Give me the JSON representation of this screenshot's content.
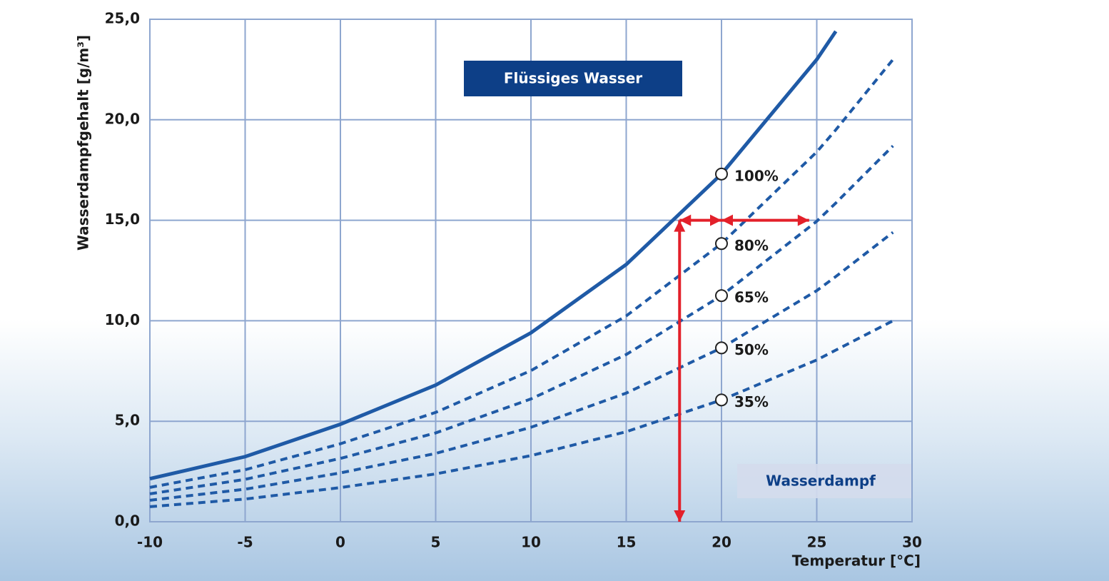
{
  "chart_data": {
    "type": "line",
    "x_label": "Temperatur [°C]",
    "y_label": "Wasserdampfgehalt [g/m³]",
    "x": [
      -10,
      -5,
      0,
      5,
      10,
      15,
      20,
      25,
      26,
      29
    ],
    "series": [
      {
        "name": "100%",
        "color": "#1f5aa6",
        "dashed": false,
        "values": [
          2.14,
          3.24,
          4.85,
          6.8,
          9.4,
          12.8,
          17.3,
          23.0,
          24.4,
          null
        ]
      },
      {
        "name": "80%",
        "color": "#1f5aa6",
        "dashed": true,
        "values": [
          1.71,
          2.59,
          3.88,
          5.44,
          7.52,
          10.24,
          13.84,
          18.4,
          19.5,
          23.0
        ]
      },
      {
        "name": "65%",
        "color": "#1f5aa6",
        "dashed": true,
        "values": [
          1.39,
          2.11,
          3.15,
          4.42,
          6.11,
          8.32,
          11.25,
          14.95,
          15.86,
          18.7
        ]
      },
      {
        "name": "50%",
        "color": "#1f5aa6",
        "dashed": true,
        "values": [
          1.07,
          1.62,
          2.43,
          3.4,
          4.7,
          6.4,
          8.65,
          11.5,
          12.2,
          14.4
        ]
      },
      {
        "name": "35%",
        "color": "#1f5aa6",
        "dashed": true,
        "values": [
          0.75,
          1.13,
          1.7,
          2.38,
          3.29,
          4.48,
          6.06,
          8.05,
          8.54,
          10.0
        ]
      }
    ],
    "marker_x": 20,
    "arrows": [
      {
        "x": [
          17.8,
          17.8
        ],
        "y": [
          0,
          15
        ]
      },
      {
        "x": [
          17.8,
          20
        ],
        "y": [
          15,
          15
        ]
      },
      {
        "x": [
          20,
          24.6
        ],
        "y": [
          15,
          15
        ]
      }
    ],
    "arrow_color": "#e3202a",
    "annotations": [
      "Flüssiges Wasser",
      "Wasserdampf"
    ],
    "xlim": [
      -10,
      30
    ],
    "xticks": [
      -10,
      -5,
      0,
      5,
      10,
      15,
      20,
      25,
      30
    ],
    "ylim": [
      0,
      25
    ],
    "yticks": [
      {
        "value": 0,
        "label": "0,0"
      },
      {
        "value": 5,
        "label": "5,0"
      },
      {
        "value": 10,
        "label": "10,0"
      },
      {
        "value": 15,
        "label": "15,0"
      },
      {
        "value": 20,
        "label": "20,0"
      },
      {
        "value": 25,
        "label": "25,0"
      }
    ],
    "grid": true
  }
}
